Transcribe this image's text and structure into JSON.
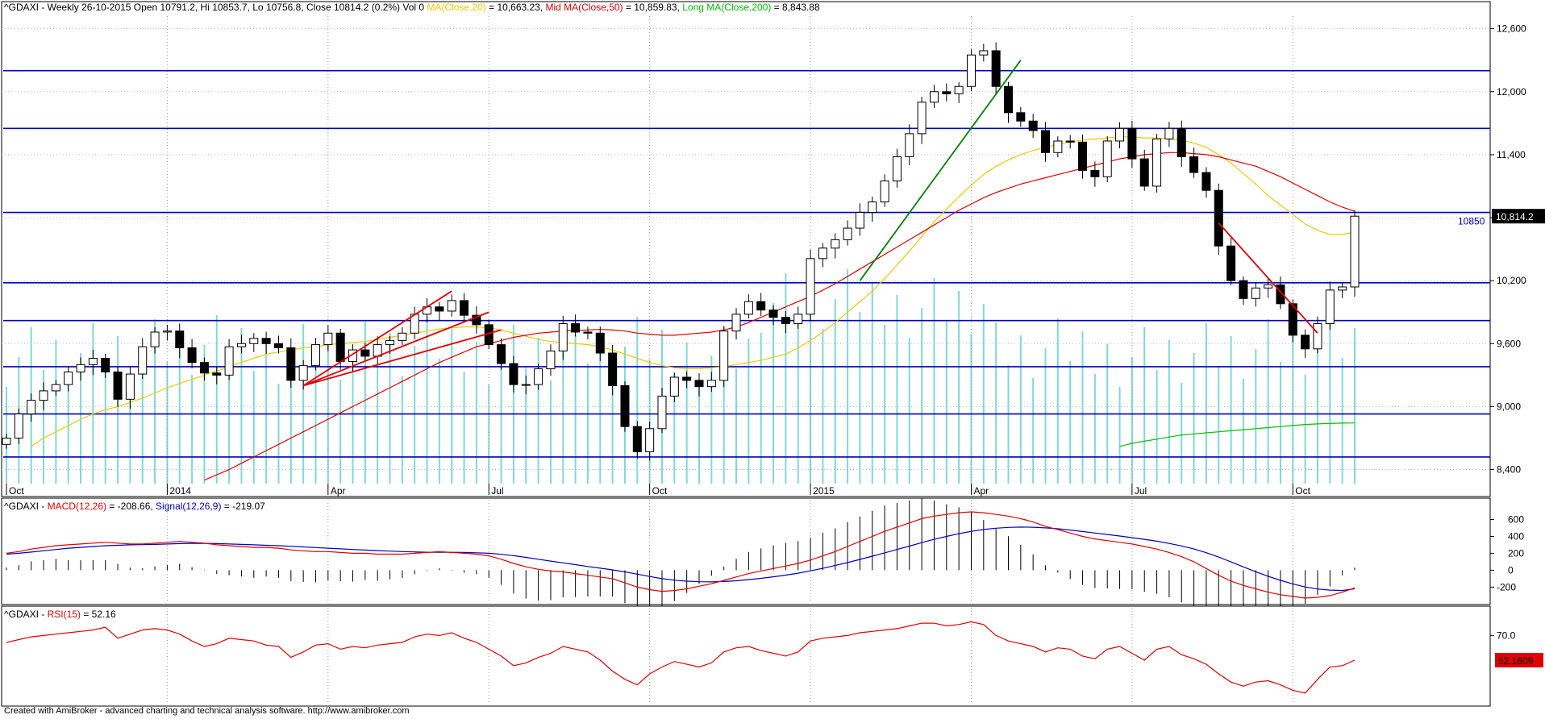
{
  "chart_data": [
    {
      "type": "candlestick",
      "panel": "price",
      "title_parts": [
        {
          "text": "^GDAXI - Weekly 26-10-2015 Open 10791.2, Hi 10853.7, Lo 10756.8, Close 10814.2 (0.2%) Vol 0 ",
          "color": "#000000"
        },
        {
          "text": "MA(Close,20)",
          "color": "#f0c800"
        },
        {
          "text": " = 10,663.23, ",
          "color": "#000000"
        },
        {
          "text": "Mid MA(Close,50)",
          "color": "#e00000"
        },
        {
          "text": " = 10,859.83, ",
          "color": "#000000"
        },
        {
          "text": "Long MA(Close,200)",
          "color": "#00c000"
        },
        {
          "text": " = 8,843.88",
          "color": "#000000"
        }
      ],
      "y_ticks": [
        "12,600",
        "12,000",
        "11,400",
        "10,800",
        "10,200",
        "9,600",
        "9,000",
        "8,400"
      ],
      "y_tick_values": [
        12600,
        12000,
        11400,
        10800,
        10200,
        9600,
        9000,
        8400
      ],
      "ylim": [
        8220,
        12720
      ],
      "x_labels": [
        {
          "text": "Oct",
          "week": 0
        },
        {
          "text": "2014",
          "week": 13
        },
        {
          "text": "Apr",
          "week": 26
        },
        {
          "text": "Jul",
          "week": 39
        },
        {
          "text": "Oct",
          "week": 52
        },
        {
          "text": "2015",
          "week": 65
        },
        {
          "text": "Apr",
          "week": 78
        },
        {
          "text": "Jul",
          "week": 91
        },
        {
          "text": "Oct",
          "week": 104
        }
      ],
      "weeks": 110,
      "close": [
        8700,
        8930,
        9060,
        9150,
        9210,
        9330,
        9400,
        9460,
        9330,
        9070,
        9310,
        9570,
        9710,
        9720,
        9560,
        9420,
        9320,
        9300,
        9570,
        9600,
        9650,
        9600,
        9560,
        9250,
        9390,
        9590,
        9700,
        9430,
        9540,
        9480,
        9590,
        9630,
        9700,
        9880,
        9950,
        9910,
        10010,
        9870,
        9780,
        9590,
        9410,
        9210,
        9210,
        9360,
        9530,
        9790,
        9710,
        9700,
        9510,
        9200,
        8810,
        8570,
        8790,
        9100,
        9280,
        9250,
        9190,
        9250,
        9720,
        9880,
        10000,
        9920,
        9850,
        9790,
        9880,
        10410,
        10510,
        10590,
        10700,
        10850,
        10950,
        11150,
        11380,
        11600,
        11900,
        12000,
        11980,
        12050,
        12350,
        12390,
        12050,
        11800,
        11720,
        11630,
        11420,
        11530,
        11520,
        11250,
        11190,
        11530,
        11650,
        11360,
        11100,
        11550,
        11650,
        11380,
        11230,
        11060,
        10530,
        10200,
        10030,
        10130,
        10160,
        9980,
        9680,
        9550,
        9790,
        10110,
        10140,
        10814
      ],
      "gaps": [
        2,
        50
      ],
      "volume_note": "vertical cyan volume bars",
      "ma20": [
        null,
        null,
        8620,
        8700,
        8760,
        8820,
        8880,
        8930,
        8970,
        9000,
        9040,
        9080,
        9130,
        9180,
        9220,
        9260,
        9300,
        9340,
        9380,
        9420,
        9460,
        9500,
        9520,
        9540,
        9560,
        9570,
        9590,
        9600,
        9610,
        9620,
        9640,
        9660,
        9680,
        9700,
        9720,
        9740,
        9750,
        9760,
        9760,
        9750,
        9730,
        9700,
        9670,
        9640,
        9620,
        9610,
        9600,
        9590,
        9570,
        9540,
        9500,
        9460,
        9420,
        9390,
        9370,
        9360,
        9360,
        9370,
        9380,
        9400,
        9420,
        9440,
        9470,
        9500,
        9560,
        9630,
        9710,
        9800,
        9900,
        10000,
        10100,
        10220,
        10350,
        10480,
        10620,
        10760,
        10880,
        11000,
        11110,
        11210,
        11290,
        11350,
        11400,
        11440,
        11470,
        11500,
        11520,
        11540,
        11550,
        11560,
        11570,
        11570,
        11560,
        11560,
        11550,
        11540,
        11510,
        11470,
        11400,
        11320,
        11220,
        11120,
        11010,
        10920,
        10830,
        10740,
        10680,
        10640,
        10640,
        10663
      ],
      "ma50": [
        null,
        null,
        null,
        null,
        null,
        null,
        null,
        null,
        null,
        null,
        null,
        null,
        null,
        null,
        null,
        null,
        8300,
        8350,
        8400,
        8460,
        8520,
        8580,
        8640,
        8700,
        8760,
        8820,
        8880,
        8940,
        9000,
        9060,
        9120,
        9180,
        9240,
        9300,
        9360,
        9420,
        9470,
        9520,
        9570,
        9600,
        9630,
        9660,
        9680,
        9700,
        9710,
        9720,
        9725,
        9730,
        9735,
        9730,
        9720,
        9700,
        9690,
        9680,
        9680,
        9690,
        9700,
        9710,
        9730,
        9760,
        9800,
        9850,
        9900,
        9950,
        10000,
        10050,
        10110,
        10170,
        10240,
        10310,
        10380,
        10450,
        10520,
        10590,
        10660,
        10730,
        10800,
        10870,
        10930,
        10990,
        11040,
        11080,
        11120,
        11150,
        11180,
        11210,
        11240,
        11270,
        11300,
        11330,
        11360,
        11380,
        11400,
        11410,
        11420,
        11420,
        11410,
        11400,
        11380,
        11350,
        11320,
        11290,
        11240,
        11190,
        11130,
        11070,
        11010,
        10950,
        10900,
        10860
      ],
      "ma200": [
        null,
        null,
        null,
        null,
        null,
        null,
        null,
        null,
        null,
        null,
        null,
        null,
        null,
        null,
        null,
        null,
        null,
        null,
        null,
        null,
        null,
        null,
        null,
        null,
        null,
        null,
        null,
        null,
        null,
        null,
        null,
        null,
        null,
        null,
        null,
        null,
        null,
        null,
        null,
        null,
        null,
        null,
        null,
        null,
        null,
        null,
        null,
        null,
        null,
        null,
        null,
        null,
        null,
        null,
        null,
        null,
        null,
        null,
        null,
        null,
        null,
        null,
        null,
        null,
        null,
        null,
        null,
        null,
        null,
        null,
        null,
        null,
        null,
        null,
        null,
        null,
        null,
        null,
        null,
        null,
        null,
        null,
        null,
        null,
        null,
        null,
        null,
        null,
        null,
        null,
        8620,
        8650,
        8670,
        8690,
        8710,
        8730,
        8740,
        8750,
        8760,
        8770,
        8780,
        8790,
        8800,
        8810,
        8820,
        8830,
        8835,
        8840,
        8843,
        8844
      ],
      "ma200_visible_from_week": 85,
      "horizontal_levels": [
        12200,
        11650,
        10850,
        10180,
        9820,
        9380,
        8930,
        8520
      ],
      "level_label": "10850",
      "last_price_label": "10,814.2",
      "trendlines": [
        {
          "color": "#008000",
          "from": [
            69,
            10200
          ],
          "to": [
            82,
            12300
          ]
        },
        {
          "color": "#e00000",
          "from": [
            24,
            9200
          ],
          "to": [
            36,
            10100
          ]
        },
        {
          "color": "#e00000",
          "from": [
            24,
            9200
          ],
          "to": [
            39,
            9900
          ]
        },
        {
          "color": "#e00000",
          "from": [
            24,
            9200
          ],
          "to": [
            40,
            9730
          ]
        },
        {
          "color": "#e00000",
          "from": [
            98,
            10750
          ],
          "to": [
            106,
            9700
          ]
        }
      ]
    },
    {
      "type": "line",
      "panel": "macd",
      "title_parts": [
        {
          "text": "^GDAXI - ",
          "color": "#000000"
        },
        {
          "text": "MACD(12,26)",
          "color": "#e00000"
        },
        {
          "text": " = -208.66, ",
          "color": "#000000"
        },
        {
          "text": "Signal(12,26,9)",
          "color": "#0000c0"
        },
        {
          "text": " = -219.07",
          "color": "#000000"
        }
      ],
      "y_ticks": [
        "600",
        "400",
        "200",
        "0",
        "-200"
      ],
      "y_tick_values": [
        600,
        400,
        200,
        0,
        -200
      ],
      "ylim": [
        -330,
        700
      ],
      "series": [
        {
          "name": "MACD(12,26)",
          "color": "#e00000",
          "values": [
            200,
            220,
            250,
            270,
            290,
            300,
            310,
            320,
            330,
            320,
            310,
            310,
            320,
            330,
            340,
            330,
            320,
            300,
            290,
            280,
            270,
            270,
            260,
            240,
            230,
            220,
            220,
            210,
            200,
            200,
            190,
            190,
            190,
            200,
            210,
            220,
            210,
            200,
            190,
            170,
            130,
            80,
            40,
            10,
            -10,
            -20,
            -40,
            -60,
            -80,
            -100,
            -150,
            -200,
            -230,
            -250,
            -240,
            -220,
            -190,
            -160,
            -120,
            -80,
            -40,
            -10,
            20,
            50,
            80,
            120,
            170,
            220,
            280,
            340,
            400,
            460,
            510,
            560,
            610,
            640,
            660,
            680,
            690,
            680,
            660,
            640,
            610,
            570,
            520,
            480,
            440,
            400,
            370,
            350,
            330,
            310,
            280,
            250,
            210,
            160,
            100,
            20,
            -60,
            -130,
            -180,
            -220,
            -260,
            -290,
            -310,
            -330,
            -320,
            -300,
            -260,
            -209
          ]
        },
        {
          "name": "Signal(12,26,9)",
          "color": "#0000c0",
          "values": [
            190,
            200,
            215,
            230,
            245,
            260,
            270,
            280,
            290,
            295,
            300,
            302,
            305,
            310,
            315,
            318,
            318,
            315,
            310,
            305,
            300,
            295,
            290,
            283,
            276,
            268,
            260,
            253,
            245,
            238,
            232,
            226,
            220,
            216,
            213,
            212,
            212,
            210,
            206,
            200,
            188,
            172,
            152,
            130,
            108,
            87,
            66,
            44,
            24,
            4,
            -20,
            -47,
            -74,
            -100,
            -118,
            -130,
            -136,
            -138,
            -134,
            -125,
            -112,
            -96,
            -78,
            -58,
            -35,
            -8,
            22,
            55,
            90,
            128,
            166,
            205,
            245,
            285,
            326,
            365,
            400,
            432,
            460,
            482,
            497,
            506,
            510,
            508,
            501,
            490,
            475,
            458,
            440,
            422,
            404,
            385,
            365,
            343,
            317,
            287,
            251,
            207,
            155,
            98,
            39,
            -18,
            -72,
            -120,
            -162,
            -198,
            -222,
            -236,
            -240,
            -219
          ]
        }
      ],
      "histogram_note": "black vertical histogram bars"
    },
    {
      "type": "line",
      "panel": "rsi",
      "title_parts": [
        {
          "text": "^GDAXI - ",
          "color": "#000000"
        },
        {
          "text": "RSI(15)",
          "color": "#e00000"
        },
        {
          "text": " = 52.16",
          "color": "#000000"
        }
      ],
      "y_ticks": [
        "70.0"
      ],
      "y_tick_values": [
        70
      ],
      "ylim": [
        22,
        82
      ],
      "last_value_label": "52.1609",
      "series": [
        {
          "name": "RSI(15)",
          "color": "#e00000",
          "values": [
            65,
            67,
            69,
            70,
            71,
            72,
            73,
            74,
            76,
            68,
            71,
            74,
            75,
            74,
            71,
            66,
            62,
            64,
            68,
            67,
            66,
            63,
            62,
            54,
            58,
            63,
            64,
            60,
            62,
            61,
            63,
            64,
            65,
            69,
            71,
            70,
            72,
            68,
            65,
            60,
            55,
            48,
            50,
            54,
            57,
            62,
            60,
            58,
            52,
            44,
            38,
            34,
            42,
            47,
            51,
            49,
            47,
            50,
            58,
            61,
            62,
            59,
            57,
            55,
            58,
            66,
            68,
            69,
            70,
            72,
            73,
            74,
            75,
            77,
            79,
            79,
            77,
            78,
            80,
            78,
            70,
            66,
            64,
            62,
            58,
            61,
            60,
            55,
            53,
            60,
            62,
            57,
            52,
            60,
            62,
            56,
            53,
            49,
            42,
            36,
            33,
            36,
            37,
            34,
            30,
            28,
            38,
            47,
            48,
            52
          ]
        }
      ]
    }
  ],
  "footer": "Created with AmiBroker - advanced charting and technical analysis software. http://www.amibroker.com"
}
